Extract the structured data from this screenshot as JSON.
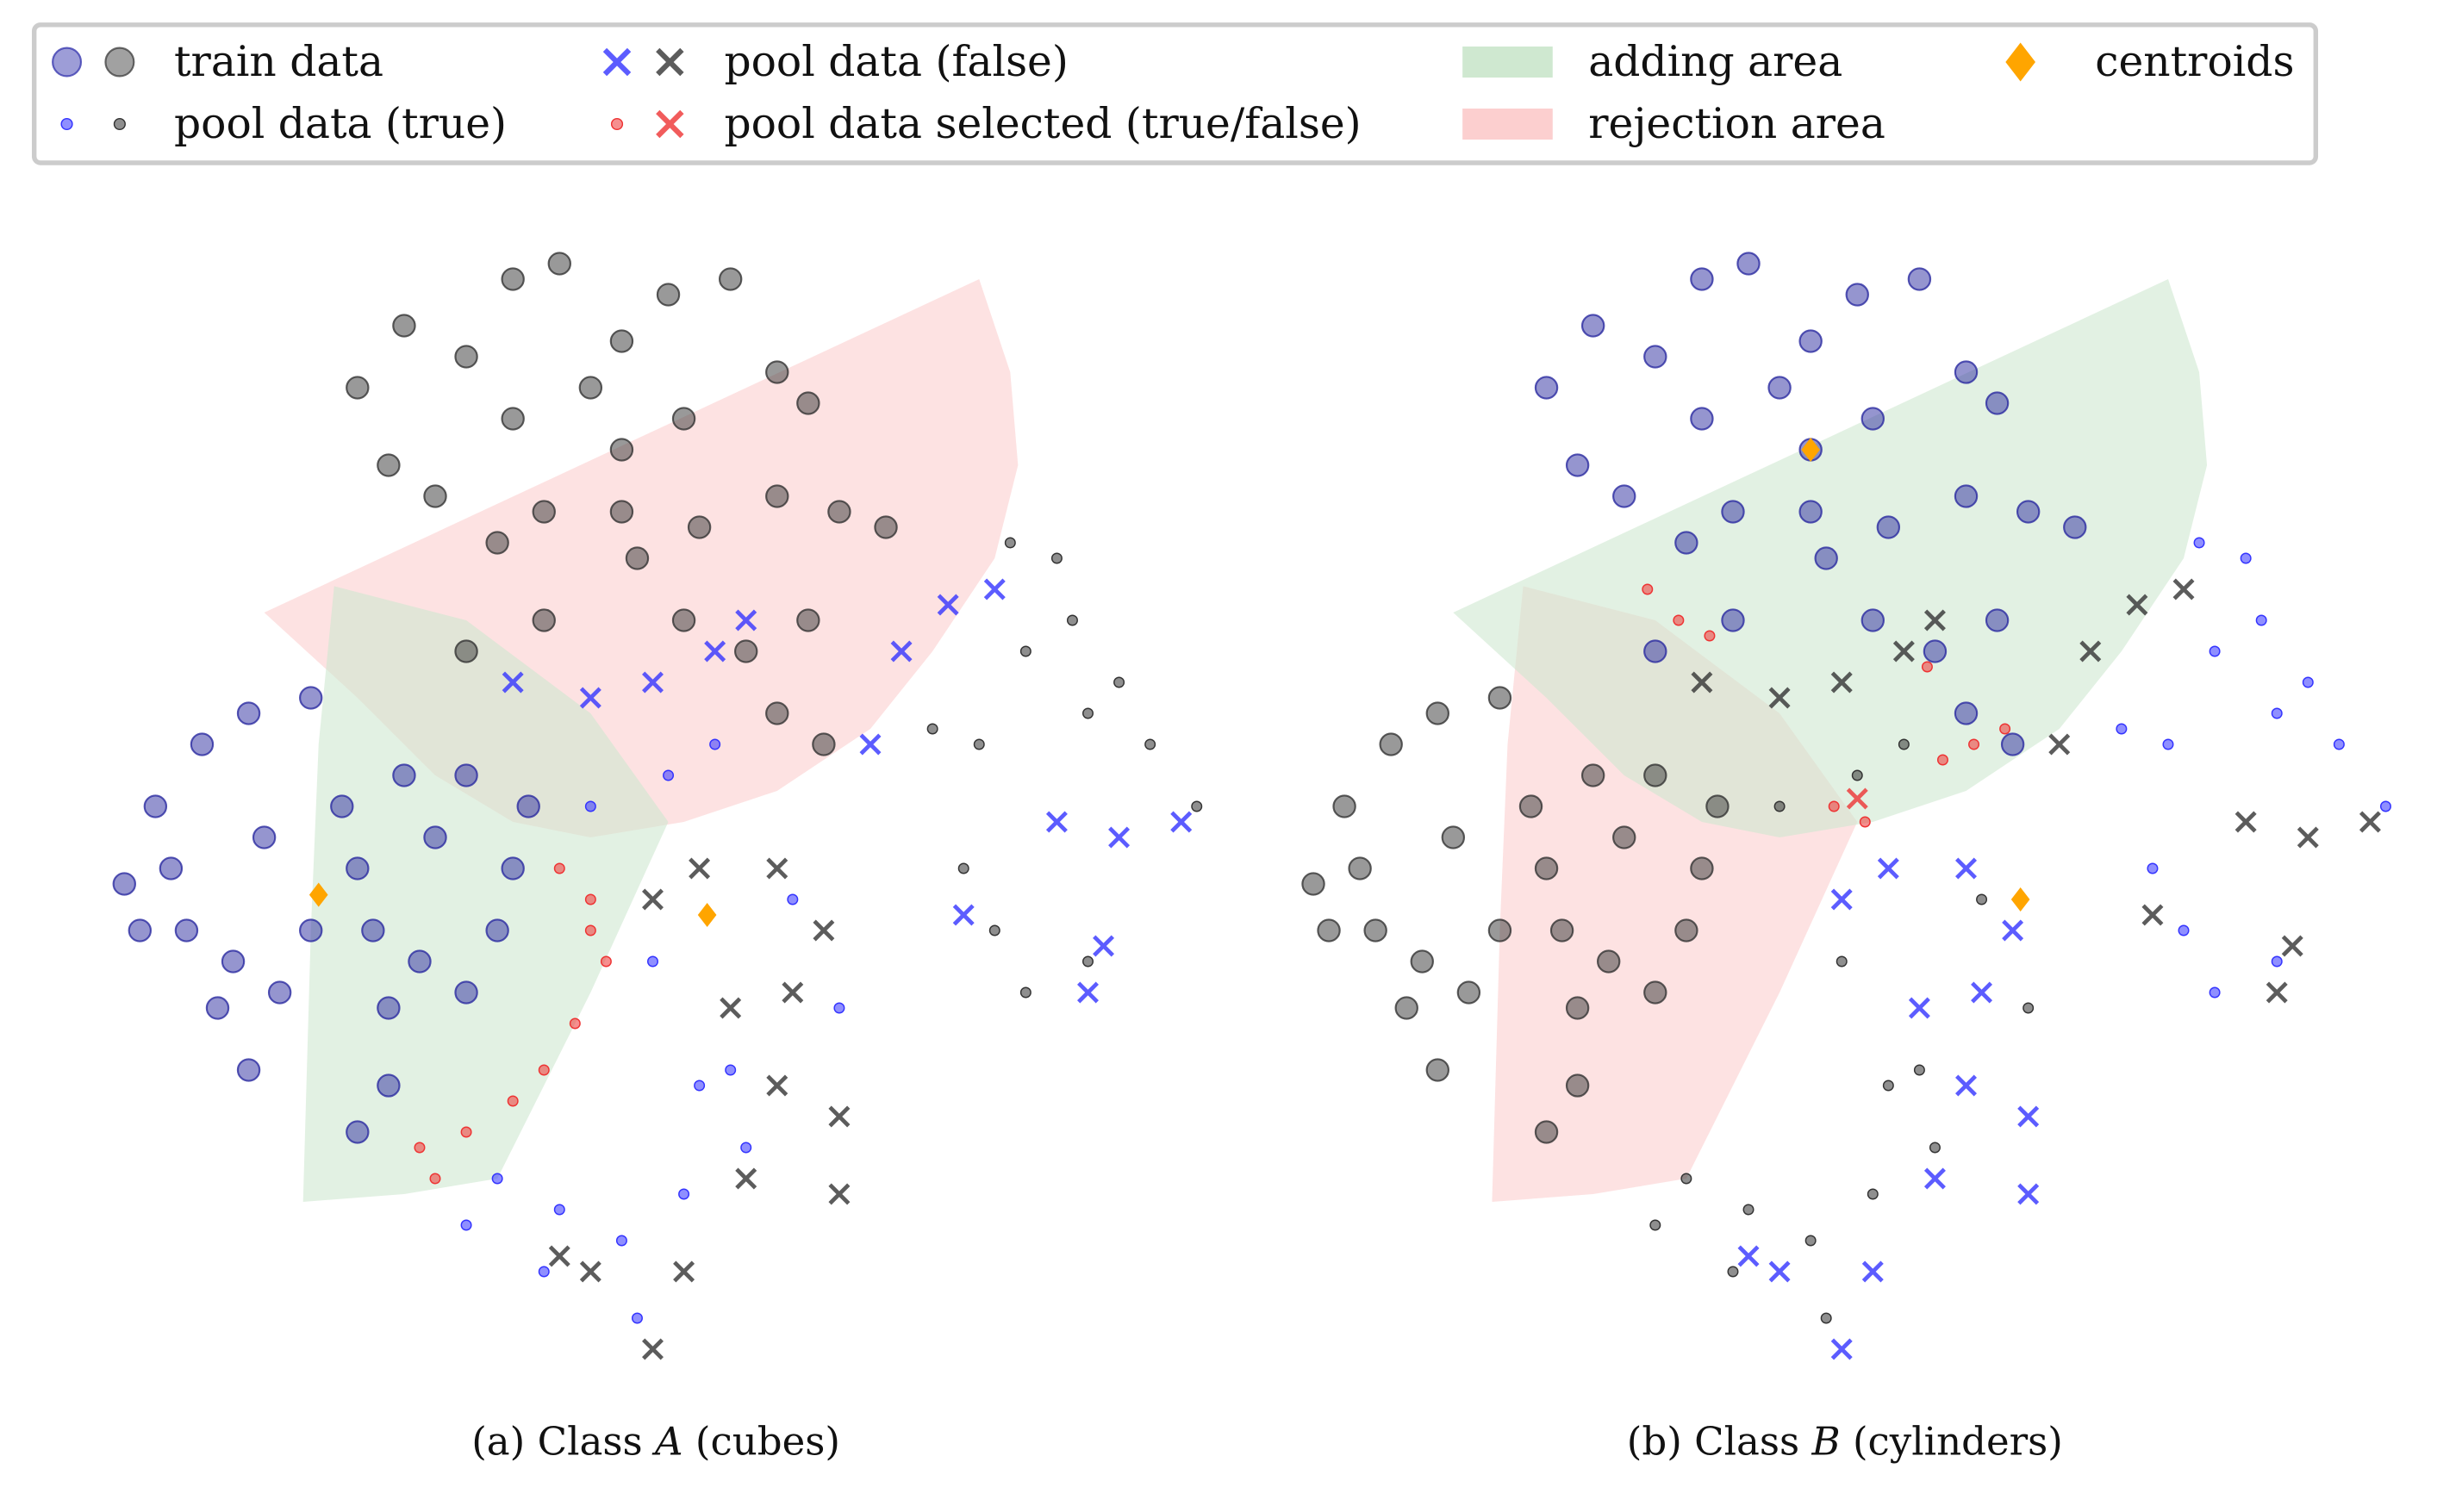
{
  "legend": {
    "items": [
      {
        "label": "train data",
        "markers": [
          "circle-large:#3b3bb0",
          "circle-large:#444444"
        ]
      },
      {
        "label": "pool data (true)",
        "markers": [
          "circle-small:#3333ff",
          "circle-small:#333333"
        ]
      },
      {
        "label": "pool data (false)",
        "markers": [
          "x:#3333ff",
          "x:#333333"
        ]
      },
      {
        "label": "pool data selected (true/false)",
        "markers": [
          "circle-small:#ee3333",
          "x:#ee3333"
        ]
      },
      {
        "label": "adding area",
        "markers": [
          "patch:#cfe8d0"
        ]
      },
      {
        "label": "rejection area",
        "markers": [
          "patch:#fccfcf"
        ]
      },
      {
        "label": "centroids",
        "markers": [
          "diamond:#ffa500"
        ]
      }
    ]
  },
  "chart_data": {
    "type": "scatter",
    "xlabel": "",
    "ylabel": "",
    "grid": false,
    "axes_visible": false,
    "legend_placement": "top",
    "colors": {
      "blue_train": "#2b2ba0",
      "black_train": "#333333",
      "blue_pool": "#3333ff",
      "black_pool": "#333333",
      "selected": "#ee3333",
      "centroid": "#ffa500",
      "adding_area": "#cfe8d0",
      "rejection_area": "#fccfcf"
    },
    "groups": {
      "left_cluster": [
        [
          -34.5,
          -5
        ],
        [
          -32.5,
          0
        ],
        [
          -29.5,
          4
        ],
        [
          -26.5,
          6
        ],
        [
          -22.5,
          7
        ],
        [
          -30.5,
          -8
        ],
        [
          -28.5,
          -13
        ],
        [
          -26.5,
          -17
        ],
        [
          -24.5,
          -12
        ],
        [
          -20.5,
          0
        ],
        [
          -19.5,
          -4
        ],
        [
          -18.5,
          -8
        ],
        [
          -17.5,
          -13
        ],
        [
          -15.5,
          -10
        ],
        [
          -12.5,
          -12
        ],
        [
          -10.5,
          -8
        ],
        [
          -9.5,
          -4
        ],
        [
          -14.5,
          -2
        ],
        [
          -16.5,
          2
        ],
        [
          -12.5,
          2
        ],
        [
          -8.5,
          0
        ],
        [
          -17.5,
          -18
        ],
        [
          -19.5,
          -21
        ],
        [
          -33.5,
          -8
        ],
        [
          -31.5,
          -4
        ],
        [
          -25.5,
          -2
        ],
        [
          -22.5,
          -8
        ],
        [
          -27.5,
          -10
        ]
      ],
      "top_cluster": [
        [
          -19.5,
          27
        ],
        [
          -16.5,
          31
        ],
        [
          -12.5,
          29
        ],
        [
          -9.5,
          34
        ],
        [
          -6.5,
          35
        ],
        [
          -17.5,
          22
        ],
        [
          -14.5,
          20
        ],
        [
          -9.5,
          25
        ],
        [
          -2.5,
          30
        ],
        [
          0.5,
          33
        ],
        [
          4.5,
          34
        ],
        [
          7.5,
          28
        ],
        [
          9.5,
          26
        ],
        [
          1.5,
          25
        ],
        [
          -2.5,
          23
        ],
        [
          -4.5,
          27
        ],
        [
          -10.5,
          17
        ],
        [
          -7.5,
          19
        ],
        [
          -2.5,
          19
        ],
        [
          2.5,
          18
        ],
        [
          7.5,
          20
        ],
        [
          11.5,
          19
        ],
        [
          14.5,
          18
        ],
        [
          9.5,
          12
        ],
        [
          5.5,
          10
        ],
        [
          1.5,
          12
        ],
        [
          -1.5,
          16
        ],
        [
          -7.5,
          12
        ],
        [
          -12.5,
          10
        ],
        [
          7.5,
          6
        ],
        [
          10.5,
          4
        ]
      ],
      "pool_small_bottom": [
        [
          -0.5,
          -10
        ],
        [
          2.5,
          -18
        ],
        [
          5.5,
          -22
        ],
        [
          1.5,
          -25
        ],
        [
          -2.5,
          -28
        ],
        [
          -6.5,
          -26
        ],
        [
          -10.5,
          -24
        ],
        [
          -1.5,
          -33
        ],
        [
          4.5,
          -17
        ],
        [
          11.5,
          -13
        ],
        [
          8.5,
          -6
        ],
        [
          0.5,
          2
        ],
        [
          3.5,
          4
        ],
        [
          -4.5,
          0
        ],
        [
          -12.5,
          -27
        ],
        [
          -7.5,
          -30
        ]
      ],
      "pool_small_right": [
        [
          19.5,
          -4
        ],
        [
          21.5,
          -8
        ],
        [
          23.5,
          -12
        ],
        [
          27.5,
          -10
        ],
        [
          20.5,
          4
        ],
        [
          23.5,
          10
        ],
        [
          26.5,
          12
        ],
        [
          27.5,
          6
        ],
        [
          31.5,
          4
        ],
        [
          34.5,
          0
        ],
        [
          25.5,
          16
        ],
        [
          22.5,
          17
        ],
        [
          17.5,
          5
        ],
        [
          29.5,
          8
        ]
      ],
      "pool_x_middle_right": [
        [
          -4.5,
          7
        ],
        [
          -0.5,
          8
        ],
        [
          3.5,
          10
        ],
        [
          5.5,
          12
        ],
        [
          13.5,
          4
        ],
        [
          15.5,
          10
        ],
        [
          18.5,
          13
        ],
        [
          21.5,
          14
        ],
        [
          25.5,
          -1
        ],
        [
          29.5,
          -2
        ],
        [
          33.5,
          -1
        ],
        [
          19.5,
          -7
        ],
        [
          28.5,
          -9
        ],
        [
          27.5,
          -12
        ],
        [
          -9.5,
          8
        ]
      ],
      "pool_x_bottom": [
        [
          -0.5,
          -6
        ],
        [
          2.5,
          -4
        ],
        [
          7.5,
          -4
        ],
        [
          10.5,
          -8
        ],
        [
          4.5,
          -13
        ],
        [
          7.5,
          -18
        ],
        [
          11.5,
          -20
        ],
        [
          5.5,
          -24
        ],
        [
          1.5,
          -30
        ],
        [
          -0.5,
          -35
        ],
        [
          11.5,
          -25
        ],
        [
          -4.5,
          -30
        ],
        [
          -6.5,
          -29
        ],
        [
          8.5,
          -12
        ]
      ]
    },
    "regions": {
      "upper_wedge": [
        [
          -25.5,
          12.5
        ],
        [
          20.5,
          34
        ],
        [
          22.5,
          28
        ],
        [
          23,
          22
        ],
        [
          21.5,
          16
        ],
        [
          17.5,
          10
        ],
        [
          13.5,
          5
        ],
        [
          7.5,
          1
        ],
        [
          1.5,
          -1
        ],
        [
          -4.5,
          -2
        ],
        [
          -9.5,
          -1
        ],
        [
          -14.5,
          2
        ],
        [
          -19.5,
          7
        ]
      ],
      "left_wedge": [
        [
          -21,
          14.2
        ],
        [
          -12.5,
          12
        ],
        [
          -4.5,
          6
        ],
        [
          0.5,
          -1
        ],
        [
          -4.5,
          -12
        ],
        [
          -10.5,
          -24
        ],
        [
          -16.5,
          -25
        ],
        [
          -23,
          -25.5
        ],
        [
          -22.5,
          -8
        ],
        [
          -22,
          4
        ]
      ]
    },
    "panels": [
      {
        "caption": {
          "prefix": "(a) Class ",
          "letter": "A",
          "suffix": " (cubes)"
        },
        "series": [
          {
            "legend": "train data",
            "group": "left_cluster",
            "marker": "circle-large",
            "color": "#2b2ba0"
          },
          {
            "legend": "train data",
            "group": "top_cluster",
            "marker": "circle-large",
            "color": "#333333"
          },
          {
            "legend": "pool data (true)",
            "group": "pool_small_bottom",
            "marker": "circle-small",
            "color": "#3333ff"
          },
          {
            "legend": "pool data (true)",
            "group": "pool_small_right",
            "marker": "circle-small",
            "color": "#333333"
          },
          {
            "legend": "pool data (false)",
            "group": "pool_x_middle_right",
            "marker": "x",
            "color": "#3333ff"
          },
          {
            "legend": "pool data (false)",
            "group": "pool_x_bottom",
            "marker": "x",
            "color": "#333333"
          }
        ],
        "selected_true": [
          [
            -6.5,
            -4
          ],
          [
            -4.5,
            -6
          ],
          [
            -3.5,
            -10
          ],
          [
            -5.5,
            -14
          ],
          [
            -7.5,
            -17
          ],
          [
            -9.5,
            -19
          ],
          [
            -12.5,
            -21
          ],
          [
            -15.5,
            -22
          ],
          [
            -14.5,
            -24
          ],
          [
            -4.5,
            -8
          ]
        ],
        "selected_false": [],
        "centroids": [
          [
            -22,
            -5.7
          ],
          [
            3,
            -7
          ]
        ],
        "adding_area": "left_wedge",
        "rejection_area": "upper_wedge"
      },
      {
        "caption": {
          "prefix": "(b) Class ",
          "letter": "B",
          "suffix": " (cylinders)"
        },
        "series": [
          {
            "legend": "train data",
            "group": "top_cluster",
            "marker": "circle-large",
            "color": "#2b2ba0"
          },
          {
            "legend": "train data",
            "group": "left_cluster",
            "marker": "circle-large",
            "color": "#333333"
          },
          {
            "legend": "pool data (true)",
            "group": "pool_small_right",
            "marker": "circle-small",
            "color": "#3333ff"
          },
          {
            "legend": "pool data (true)",
            "group": "pool_small_bottom",
            "marker": "circle-small",
            "color": "#333333"
          },
          {
            "legend": "pool data (false)",
            "group": "pool_x_bottom",
            "marker": "x",
            "color": "#3333ff"
          },
          {
            "legend": "pool data (false)",
            "group": "pool_x_middle_right",
            "marker": "x",
            "color": "#333333"
          }
        ],
        "selected_true": [
          [
            -13,
            14
          ],
          [
            -11,
            12
          ],
          [
            -9,
            11
          ],
          [
            5,
            9
          ],
          [
            8,
            4
          ],
          [
            6,
            3
          ],
          [
            10,
            5
          ],
          [
            -1,
            0
          ],
          [
            1,
            -1
          ]
        ],
        "selected_false": [
          [
            0.5,
            0.5
          ]
        ],
        "centroids": [
          [
            -2.5,
            23
          ],
          [
            11,
            -6
          ]
        ],
        "adding_area": "upper_wedge",
        "rejection_area": "left_wedge"
      }
    ]
  }
}
